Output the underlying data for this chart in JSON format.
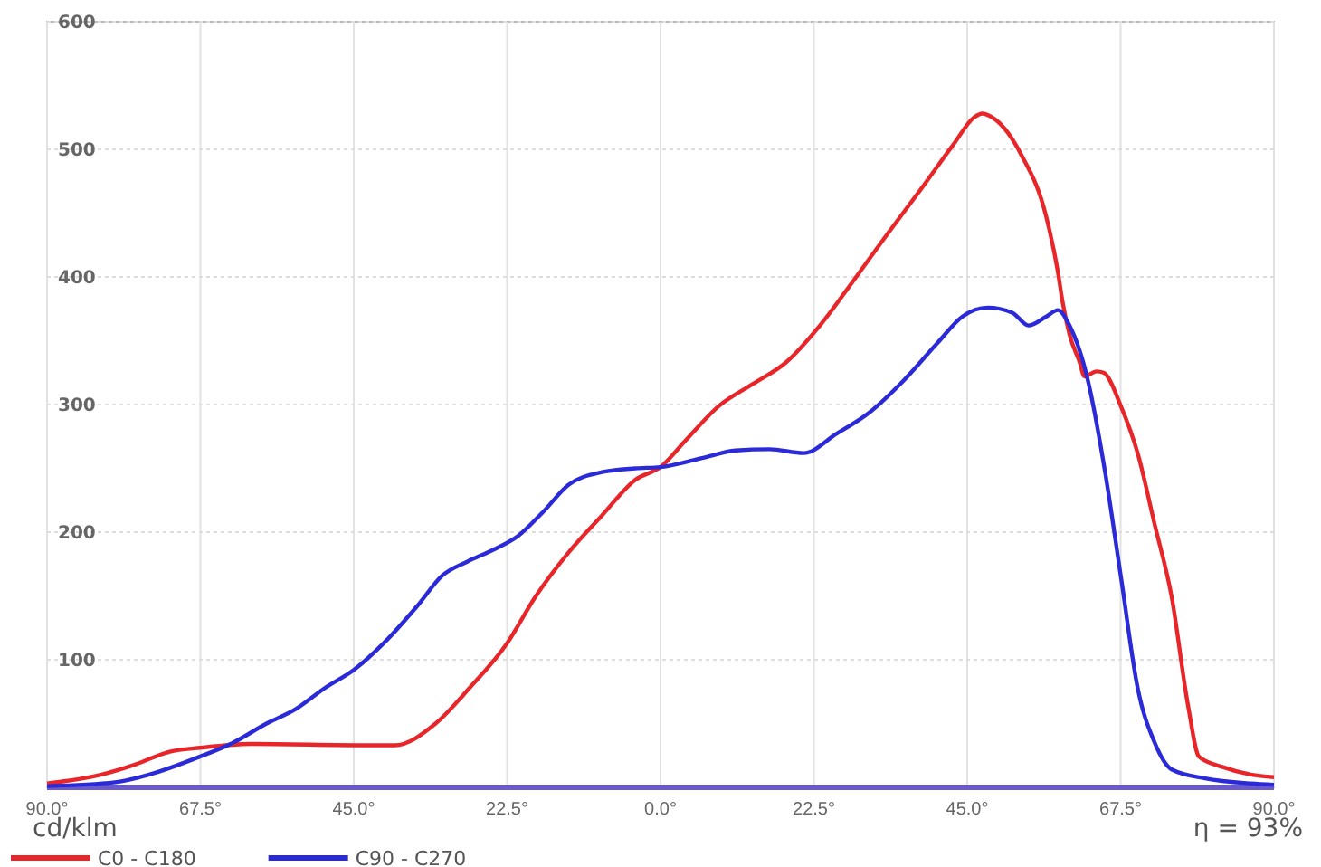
{
  "chart_data": {
    "type": "line",
    "annotations": [
      "cd/klm",
      "η = 93%"
    ],
    "xlim": [
      -90,
      90
    ],
    "xticks": [
      {
        "value": -90,
        "label": "90.0°"
      },
      {
        "value": -67.5,
        "label": "67.5°"
      },
      {
        "value": -45,
        "label": "45.0°"
      },
      {
        "value": -22.5,
        "label": "22.5°"
      },
      {
        "value": 0,
        "label": "0.0°"
      },
      {
        "value": 22.5,
        "label": "22.5°"
      },
      {
        "value": 45,
        "label": "45.0°"
      },
      {
        "value": 67.5,
        "label": "67.5°"
      },
      {
        "value": 90,
        "label": "90.0°"
      }
    ],
    "ylim": [
      0,
      600
    ],
    "yticks": [
      100,
      200,
      300,
      400,
      500,
      600
    ],
    "grid": true,
    "legend": "bottom left",
    "marker": "none",
    "line_style": "solid",
    "series": [
      {
        "name": "C0 - C180",
        "color": "#e8262a",
        "x": [
          -90,
          -82,
          -77,
          -72,
          -67.5,
          -60,
          -43,
          -39,
          -33,
          -28,
          -22.5,
          -18.4,
          -13.5,
          -8.6,
          -3.7,
          0,
          3.7,
          8.6,
          13.5,
          18.4,
          23.4,
          28.3,
          33.2,
          38.1,
          43,
          46,
          47.2,
          49.2,
          52.9,
          56.6,
          58.3,
          59,
          60,
          61.5,
          62.2,
          64,
          65,
          67.6,
          70,
          72.5,
          75,
          77.4,
          79,
          82.4,
          86.6,
          90
        ],
        "values": [
          3,
          10,
          18,
          28,
          31,
          34,
          33,
          33,
          50,
          78,
          113,
          149,
          184,
          213,
          241,
          251,
          272,
          299,
          316,
          333,
          362,
          397,
          433,
          468,
          504,
          525,
          528,
          523,
          496,
          447,
          404,
          380,
          355,
          333,
          322,
          326,
          325,
          298,
          262,
          206,
          149,
          64,
          24,
          16,
          10,
          8
        ]
      },
      {
        "name": "C90 - C270",
        "color": "#2a2ad8",
        "x": [
          -90,
          -80,
          -75,
          -67.6,
          -62.7,
          -57.8,
          -53.6,
          -49.2,
          -45,
          -40.6,
          -35.7,
          -32,
          -28.3,
          -24.6,
          -20.9,
          -17.2,
          -13.5,
          -8.6,
          -3.7,
          0,
          6.1,
          11,
          16,
          21,
          25.8,
          30.7,
          35.7,
          40.6,
          44.3,
          48,
          51.6,
          54,
          56.6,
          58.3,
          60,
          62.7,
          65.2,
          67.6,
          70,
          72.5,
          75,
          79.9,
          86.6,
          90
        ],
        "values": [
          1,
          4,
          10,
          24,
          35,
          50,
          61,
          78,
          92,
          113,
          142,
          166,
          177,
          186,
          197,
          216,
          237,
          247,
          250,
          251,
          258,
          264,
          265,
          262,
          277,
          294,
          319,
          348,
          369,
          376,
          372,
          362,
          369,
          374,
          362,
          319,
          248,
          163,
          78,
          35,
          14,
          7,
          3,
          2
        ]
      }
    ]
  }
}
